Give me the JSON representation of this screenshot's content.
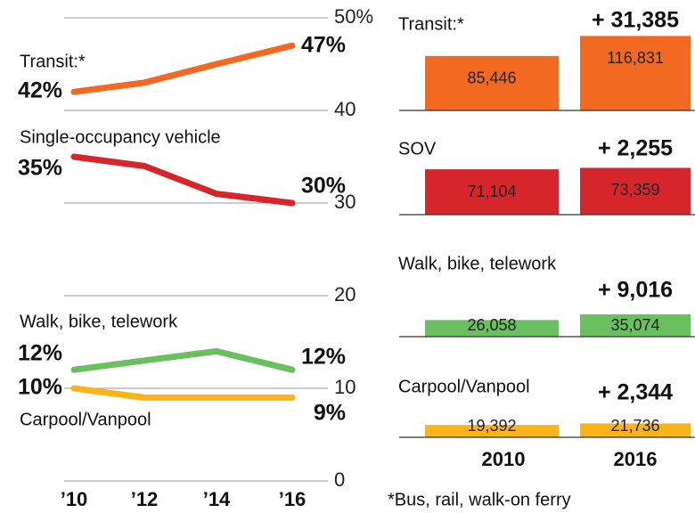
{
  "chart_data": [
    {
      "type": "line",
      "categories": [
        "’10",
        "’12",
        "’14",
        "’16"
      ],
      "ylim": [
        0,
        50
      ],
      "yticks": [
        0,
        10,
        20,
        30,
        40,
        {
          "value": 50,
          "label": "50%"
        }
      ],
      "grid": true,
      "series": [
        {
          "name": "Transit:*",
          "color": "#f26a21",
          "values": [
            42,
            43,
            45,
            47
          ],
          "value_labels": [
            "42%",
            null,
            null,
            "47%"
          ]
        },
        {
          "name": "Single-occupancy vehicle",
          "color": "#d7262b",
          "values": [
            35,
            34,
            31,
            30
          ],
          "value_labels": [
            "35%",
            null,
            null,
            "30%"
          ]
        },
        {
          "name": "Walk, bike, telework",
          "color": "#6abf5e",
          "values": [
            12,
            13,
            14,
            12
          ],
          "value_labels": [
            "12%",
            null,
            null,
            "12%"
          ]
        },
        {
          "name": "Carpool/Vanpool",
          "color": "#fbb418",
          "values": [
            10,
            9,
            9,
            9
          ],
          "value_labels": [
            "10%",
            null,
            null,
            "9%"
          ]
        }
      ]
    },
    {
      "type": "bar",
      "categories": [
        "2010",
        "2016"
      ],
      "panels": [
        {
          "title": "Transit:*",
          "change": "+ 31,385",
          "color": "#f26a21",
          "values": [
            85446,
            116831
          ],
          "value_labels": [
            "85,446",
            "116,831"
          ]
        },
        {
          "title": "SOV",
          "change": "+ 2,255",
          "color": "#d7262b",
          "values": [
            71104,
            73359
          ],
          "value_labels": [
            "71,104",
            "73,359"
          ]
        },
        {
          "title": "Walk, bike, telework",
          "change": "+ 9,016",
          "color": "#6abf5e",
          "values": [
            26058,
            35074
          ],
          "value_labels": [
            "26,058",
            "35,074"
          ]
        },
        {
          "title": "Carpool/Vanpool",
          "change": "+ 2,344",
          "color": "#fbb418",
          "values": [
            19392,
            21736
          ],
          "value_labels": [
            "19,392",
            "21,736"
          ]
        }
      ]
    }
  ],
  "note": "*Bus, rail, walk-on ferry"
}
